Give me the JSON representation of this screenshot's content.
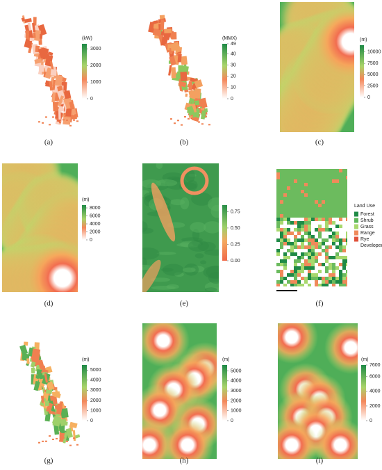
{
  "panels": [
    {
      "label": "(a)",
      "unit": "(kW)",
      "lim": [
        0,
        3300
      ],
      "ticks": [
        0,
        1000,
        2000,
        3000
      ]
    },
    {
      "label": "(b)",
      "unit": "(MMX)",
      "lim": [
        0,
        49
      ],
      "ticks": [
        0,
        10,
        20,
        30,
        40,
        49
      ]
    },
    {
      "label": "(c)",
      "unit": "(m)",
      "lim": [
        0,
        11500
      ],
      "ticks": [
        0,
        2500,
        5000,
        7500,
        10000
      ]
    },
    {
      "label": "(d)",
      "unit": "(m)",
      "lim": [
        0,
        8700
      ],
      "ticks": [
        0,
        2000,
        4000,
        6000,
        8000
      ]
    },
    {
      "label": "(e)",
      "lim": [
        0,
        0.85
      ],
      "ticks": [
        {
          "value": 0,
          "label": "0.00"
        },
        0.25,
        {
          "value": 0.5,
          "label": "0.50"
        },
        0.75
      ]
    },
    {
      "label": "(f)",
      "legend": {
        "title": "Land Use",
        "items": [
          {
            "name": "Forest",
            "color": "#1f8a46"
          },
          {
            "name": "Shrub",
            "color": "#5fb85a"
          },
          {
            "name": "Grass",
            "color": "#a8d86e"
          },
          {
            "name": "Range",
            "color": "#f08a5a"
          },
          {
            "name": "Rye",
            "color": "#e0503a"
          },
          {
            "name": "Developed",
            "color": "#ffffff"
          }
        ]
      }
    },
    {
      "label": "(g)",
      "unit": "(m)",
      "lim": [
        0,
        5500
      ],
      "ticks": [
        0,
        1000,
        2000,
        3000,
        4000,
        5000
      ]
    },
    {
      "label": "(h)",
      "unit": "(m)",
      "lim": [
        0,
        5600
      ],
      "ticks": [
        0,
        1000,
        2000,
        3000,
        4000,
        5000
      ]
    },
    {
      "label": "(i)",
      "unit": "(m)",
      "lim": [
        0,
        7600
      ],
      "ticks": [
        0,
        2000,
        4000,
        6000,
        7600
      ]
    }
  ]
}
